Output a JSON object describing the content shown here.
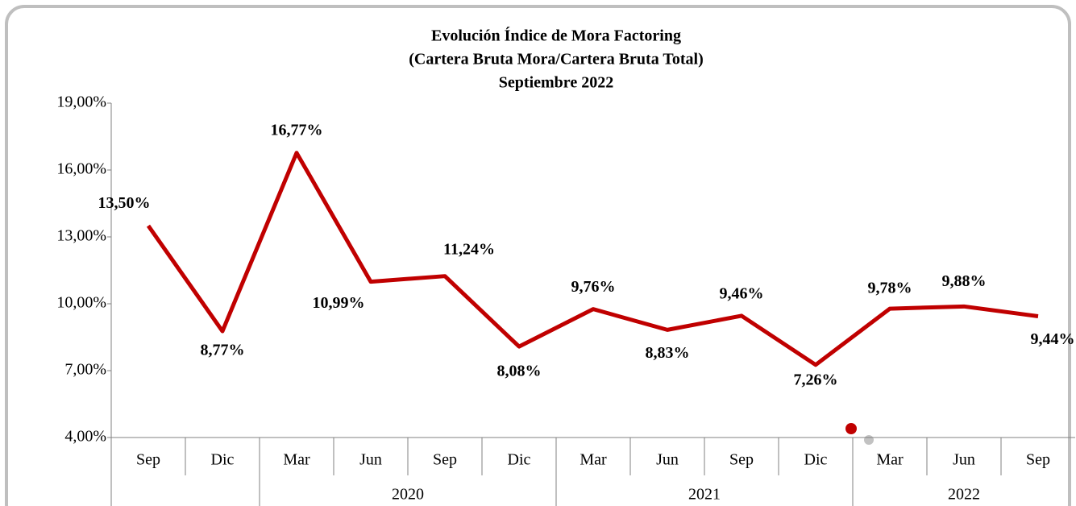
{
  "chart_data": {
    "type": "line",
    "title": [
      "Evolución Índice de Mora  Factoring",
      "(Cartera Bruta Mora/Cartera Bruta Total)",
      "Septiembre 2022"
    ],
    "categories": [
      "Sep",
      "Dic",
      "Mar",
      "Jun",
      "Sep",
      "Dic",
      "Mar",
      "Jun",
      "Sep",
      "Dic",
      "Mar",
      "Jun",
      "Sep"
    ],
    "category_groups": [
      {
        "label": null,
        "count": 2
      },
      {
        "label": "2020",
        "count": 4
      },
      {
        "label": "2021",
        "count": 4
      },
      {
        "label": "2022",
        "count": 3
      }
    ],
    "series": [
      {
        "name": null,
        "color": "#c00000",
        "values": [
          13.5,
          8.77,
          16.77,
          10.99,
          11.24,
          8.08,
          9.76,
          8.83,
          9.46,
          7.26,
          9.78,
          9.88,
          9.44
        ],
        "value_labels": [
          "13,50%",
          "8,77%",
          "16,77%",
          "10,99%",
          "11,24%",
          "8,08%",
          "9,76%",
          "8,83%",
          "9,46%",
          "7,26%",
          "9,78%",
          "9,88%",
          "9,44%"
        ]
      }
    ],
    "ylim": [
      4,
      19
    ],
    "yticks": [
      {
        "value": 4,
        "label": "4,00%"
      },
      {
        "value": 7,
        "label": "7,00%"
      },
      {
        "value": 10,
        "label": "10,00%"
      },
      {
        "value": 13,
        "label": "13,00%"
      },
      {
        "value": 16,
        "label": "16,00%"
      },
      {
        "value": 19,
        "label": "19,00%"
      }
    ],
    "grid": false
  }
}
